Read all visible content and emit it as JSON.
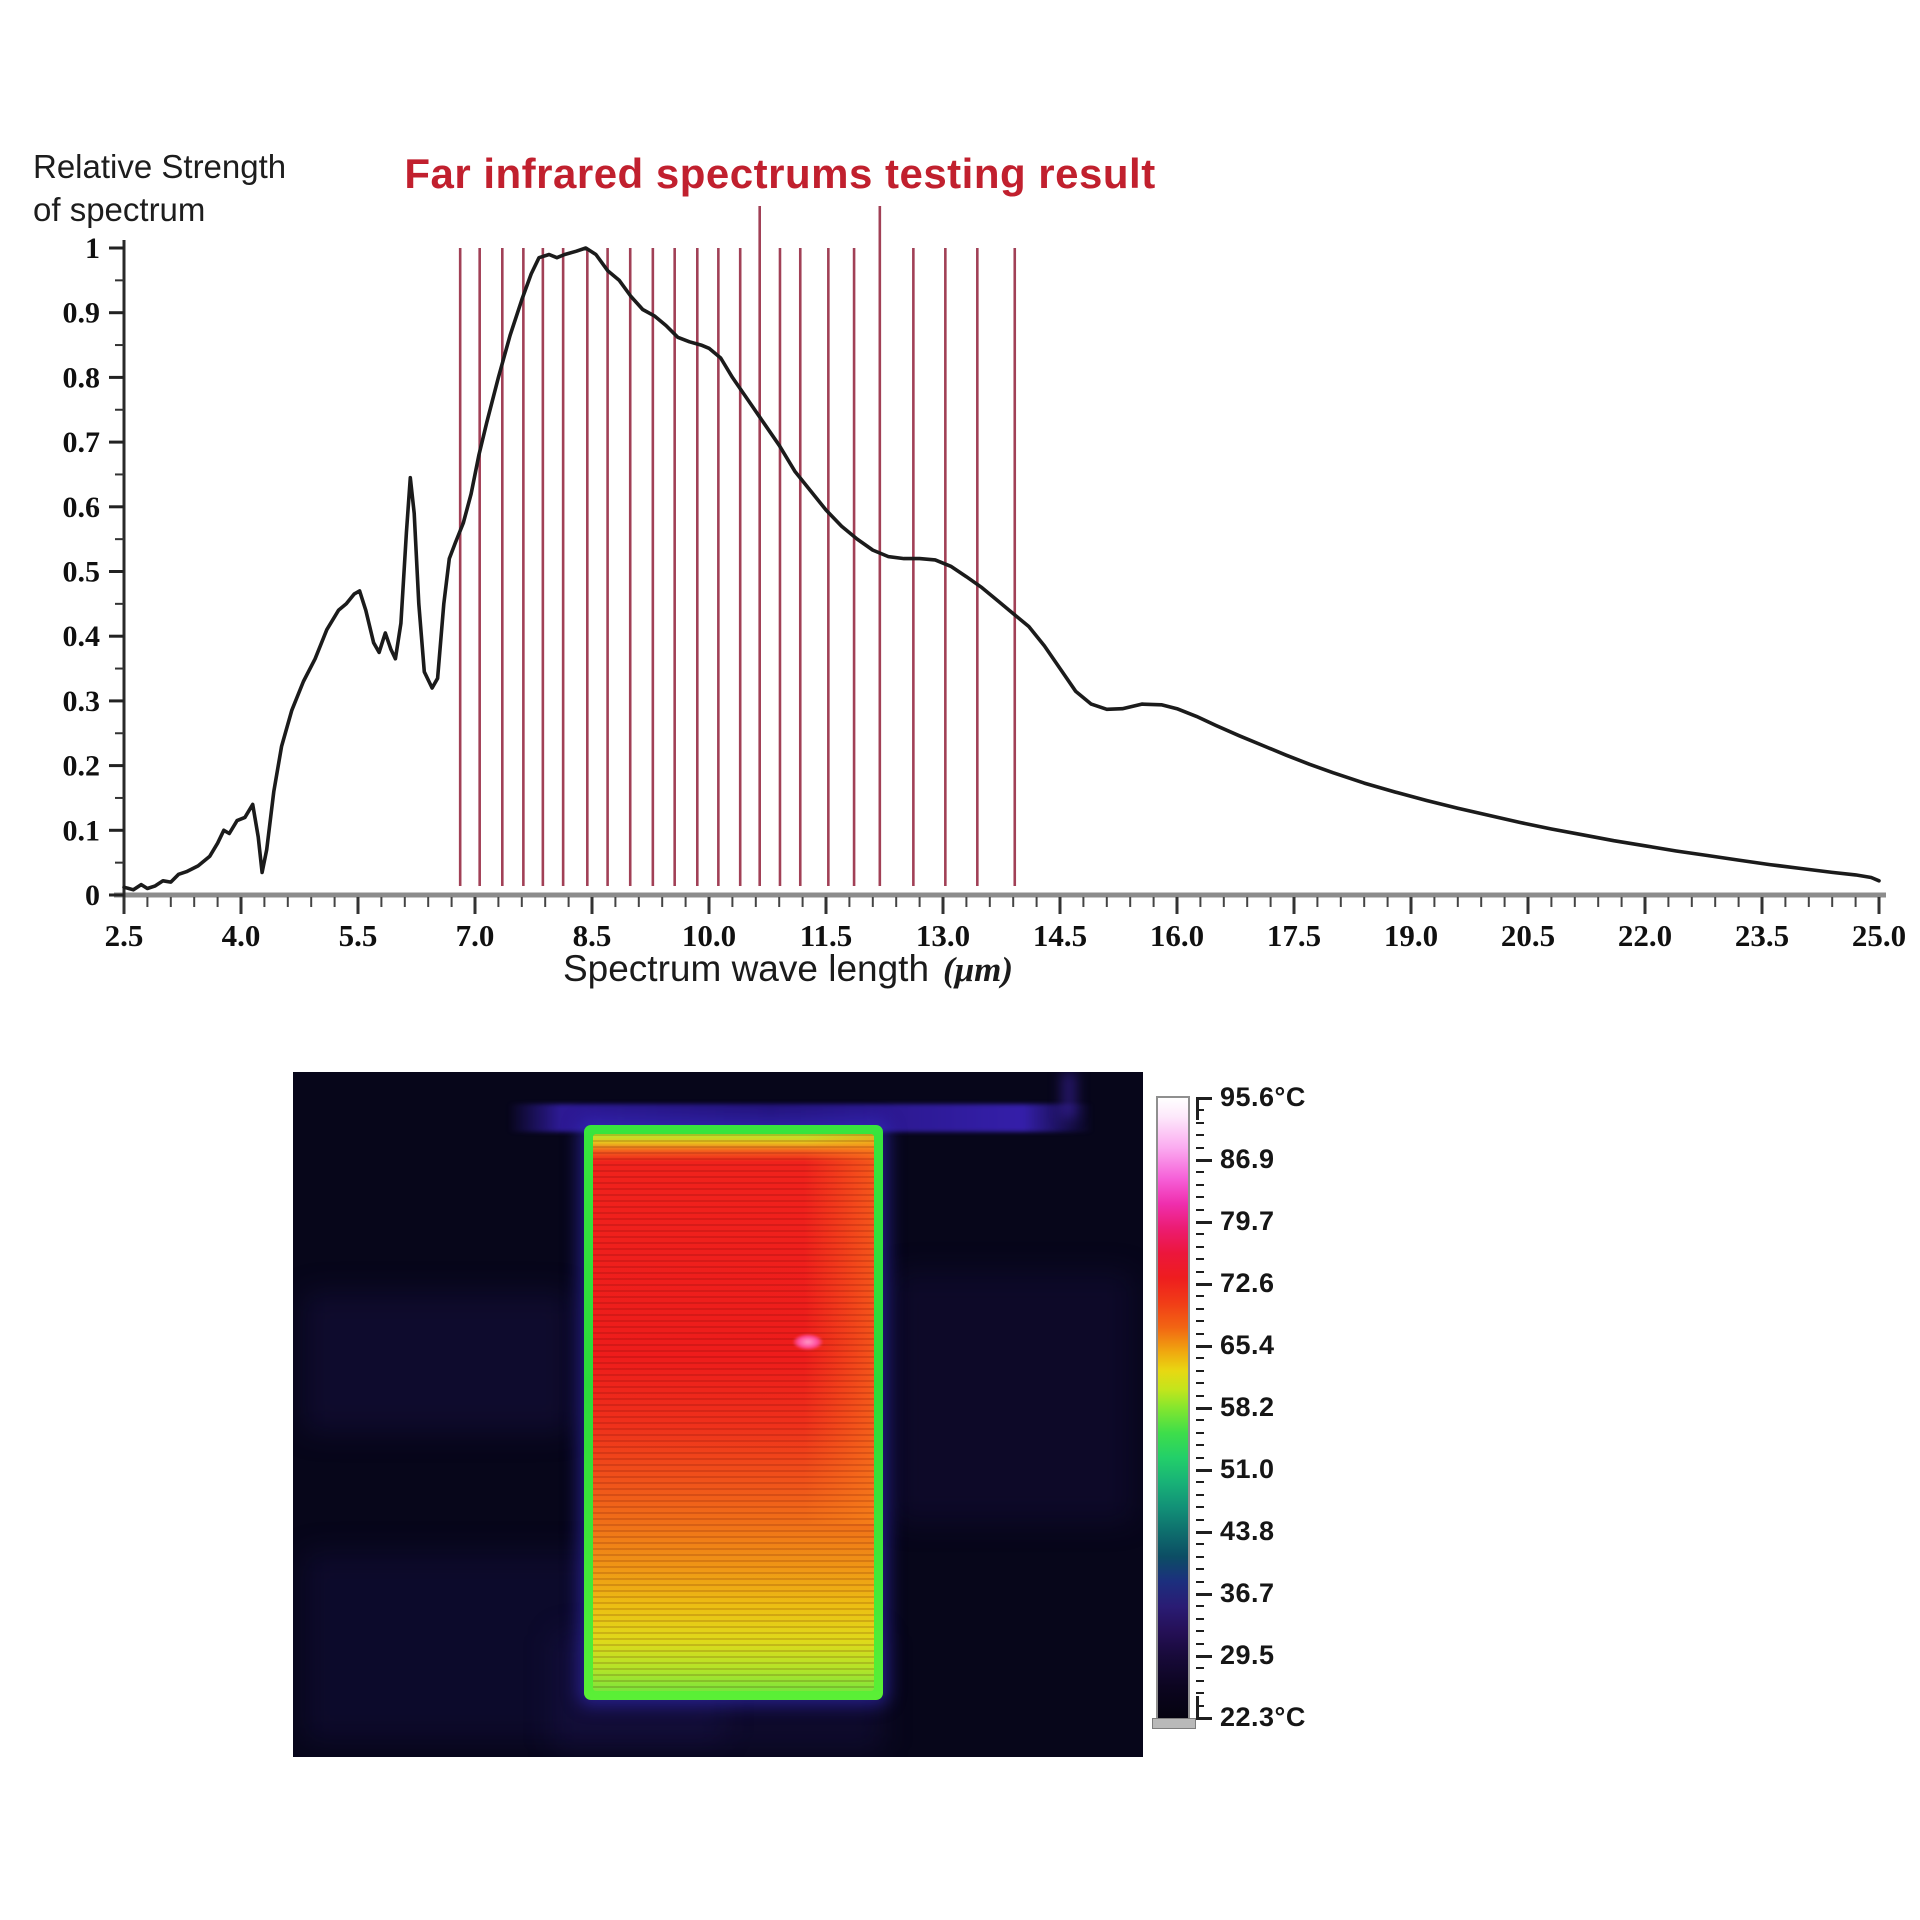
{
  "chart_data": {
    "type": "line",
    "title": "Far infrared spectrums testing result",
    "title_color": "#c1202e",
    "ylabel_lines": [
      "Relative Strength",
      "of spectrum"
    ],
    "xlabel": "Spectrum wave length",
    "xlabel_unit": "(μm)",
    "xlim": [
      2.5,
      25.0
    ],
    "ylim": [
      0,
      1
    ],
    "grid": false,
    "x_tick_labels": [
      "2.5",
      "4.0",
      "5.5",
      "7.0",
      "8.5",
      "10.0",
      "11.5",
      "13.0",
      "14.5",
      "16.0",
      "17.5",
      "19.0",
      "20.5",
      "22.0",
      "23.5",
      "25.0"
    ],
    "x_ticks": [
      2.5,
      4.0,
      5.5,
      7.0,
      8.5,
      10.0,
      11.5,
      13.0,
      14.5,
      16.0,
      17.5,
      19.0,
      20.5,
      22.0,
      23.5,
      25.0
    ],
    "x_minor_step": 0.3,
    "y_tick_labels": [
      "0",
      "0.1",
      "0.2",
      "0.3",
      "0.4",
      "0.5",
      "0.6",
      "0.7",
      "0.8",
      "0.9",
      "1"
    ],
    "y_ticks": [
      0,
      0.1,
      0.2,
      0.3,
      0.4,
      0.5,
      0.6,
      0.7,
      0.8,
      0.9,
      1.0
    ],
    "y_minor_step": 0.05,
    "curve_color": "#1b1b1b",
    "red_line_color": "#9a3048",
    "red_lines_um": [
      6.81,
      7.06,
      7.35,
      7.62,
      7.87,
      8.13,
      8.44,
      8.7,
      8.99,
      9.28,
      9.56,
      9.85,
      10.12,
      10.4,
      10.65,
      10.91,
      11.17,
      11.53,
      11.86,
      12.19,
      12.62,
      13.03,
      13.44,
      13.92
    ],
    "tall_red_lines_um": [
      10.65,
      12.19
    ],
    "series": [
      {
        "name": "far-infrared-spectrum",
        "points": [
          [
            2.5,
            0.012
          ],
          [
            2.62,
            0.008
          ],
          [
            2.72,
            0.016
          ],
          [
            2.8,
            0.01
          ],
          [
            2.9,
            0.014
          ],
          [
            3.0,
            0.022
          ],
          [
            3.1,
            0.02
          ],
          [
            3.2,
            0.032
          ],
          [
            3.3,
            0.036
          ],
          [
            3.45,
            0.045
          ],
          [
            3.6,
            0.06
          ],
          [
            3.7,
            0.08
          ],
          [
            3.78,
            0.1
          ],
          [
            3.85,
            0.095
          ],
          [
            3.95,
            0.115
          ],
          [
            4.05,
            0.12
          ],
          [
            4.15,
            0.14
          ],
          [
            4.22,
            0.09
          ],
          [
            4.27,
            0.035
          ],
          [
            4.33,
            0.07
          ],
          [
            4.42,
            0.16
          ],
          [
            4.52,
            0.23
          ],
          [
            4.65,
            0.285
          ],
          [
            4.8,
            0.33
          ],
          [
            4.95,
            0.365
          ],
          [
            5.1,
            0.41
          ],
          [
            5.25,
            0.44
          ],
          [
            5.35,
            0.45
          ],
          [
            5.45,
            0.465
          ],
          [
            5.52,
            0.47
          ],
          [
            5.6,
            0.44
          ],
          [
            5.7,
            0.39
          ],
          [
            5.77,
            0.375
          ],
          [
            5.85,
            0.405
          ],
          [
            5.92,
            0.38
          ],
          [
            5.98,
            0.365
          ],
          [
            6.05,
            0.42
          ],
          [
            6.12,
            0.56
          ],
          [
            6.17,
            0.645
          ],
          [
            6.22,
            0.59
          ],
          [
            6.28,
            0.45
          ],
          [
            6.35,
            0.345
          ],
          [
            6.45,
            0.32
          ],
          [
            6.52,
            0.335
          ],
          [
            6.6,
            0.45
          ],
          [
            6.67,
            0.52
          ],
          [
            6.75,
            0.545
          ],
          [
            6.85,
            0.575
          ],
          [
            6.95,
            0.62
          ],
          [
            7.05,
            0.68
          ],
          [
            7.15,
            0.73
          ],
          [
            7.3,
            0.8
          ],
          [
            7.45,
            0.865
          ],
          [
            7.6,
            0.92
          ],
          [
            7.72,
            0.96
          ],
          [
            7.82,
            0.985
          ],
          [
            7.95,
            0.99
          ],
          [
            8.05,
            0.985
          ],
          [
            8.15,
            0.99
          ],
          [
            8.3,
            0.995
          ],
          [
            8.42,
            1.0
          ],
          [
            8.55,
            0.99
          ],
          [
            8.7,
            0.965
          ],
          [
            8.85,
            0.95
          ],
          [
            9.0,
            0.925
          ],
          [
            9.15,
            0.905
          ],
          [
            9.3,
            0.895
          ],
          [
            9.45,
            0.88
          ],
          [
            9.6,
            0.862
          ],
          [
            9.75,
            0.855
          ],
          [
            9.9,
            0.85
          ],
          [
            10.0,
            0.845
          ],
          [
            10.15,
            0.83
          ],
          [
            10.3,
            0.8
          ],
          [
            10.5,
            0.765
          ],
          [
            10.7,
            0.73
          ],
          [
            10.9,
            0.695
          ],
          [
            11.1,
            0.655
          ],
          [
            11.3,
            0.625
          ],
          [
            11.5,
            0.595
          ],
          [
            11.7,
            0.57
          ],
          [
            11.9,
            0.55
          ],
          [
            12.1,
            0.533
          ],
          [
            12.3,
            0.523
          ],
          [
            12.5,
            0.52
          ],
          [
            12.7,
            0.52
          ],
          [
            12.9,
            0.518
          ],
          [
            13.1,
            0.508
          ],
          [
            13.3,
            0.492
          ],
          [
            13.5,
            0.475
          ],
          [
            13.7,
            0.455
          ],
          [
            13.9,
            0.435
          ],
          [
            14.1,
            0.415
          ],
          [
            14.3,
            0.385
          ],
          [
            14.5,
            0.35
          ],
          [
            14.7,
            0.315
          ],
          [
            14.9,
            0.295
          ],
          [
            15.1,
            0.287
          ],
          [
            15.3,
            0.288
          ],
          [
            15.55,
            0.295
          ],
          [
            15.8,
            0.294
          ],
          [
            16.0,
            0.288
          ],
          [
            16.25,
            0.276
          ],
          [
            16.5,
            0.262
          ],
          [
            16.8,
            0.246
          ],
          [
            17.1,
            0.231
          ],
          [
            17.4,
            0.216
          ],
          [
            17.7,
            0.202
          ],
          [
            18.0,
            0.189
          ],
          [
            18.4,
            0.173
          ],
          [
            18.8,
            0.159
          ],
          [
            19.2,
            0.146
          ],
          [
            19.6,
            0.134
          ],
          [
            20.0,
            0.123
          ],
          [
            20.4,
            0.112
          ],
          [
            20.8,
            0.102
          ],
          [
            21.2,
            0.093
          ],
          [
            21.6,
            0.084
          ],
          [
            22.0,
            0.076
          ],
          [
            22.4,
            0.068
          ],
          [
            22.8,
            0.061
          ],
          [
            23.2,
            0.054
          ],
          [
            23.6,
            0.047
          ],
          [
            24.0,
            0.041
          ],
          [
            24.4,
            0.035
          ],
          [
            24.7,
            0.031
          ],
          [
            24.9,
            0.027
          ],
          [
            25.0,
            0.022
          ]
        ]
      }
    ]
  },
  "thermal": {
    "scale_labels": [
      "95.6°C",
      "86.9",
      "79.7",
      "72.6",
      "65.4",
      "58.2",
      "51.0",
      "43.8",
      "36.7",
      "29.5",
      "22.3°C"
    ],
    "scale_max_c": 95.6,
    "scale_min_c": 22.3,
    "palette_stops": [
      [
        0,
        "#ffffff"
      ],
      [
        3,
        "#fde9fb"
      ],
      [
        8,
        "#fbabf0"
      ],
      [
        13,
        "#f660d8"
      ],
      [
        17,
        "#ef2fae"
      ],
      [
        21,
        "#ec1c72"
      ],
      [
        25,
        "#ec163c"
      ],
      [
        29,
        "#ee1d1f"
      ],
      [
        33,
        "#f13c17"
      ],
      [
        37,
        "#f26513"
      ],
      [
        41,
        "#f0a90f"
      ],
      [
        44,
        "#e8d812"
      ],
      [
        47,
        "#c3e51c"
      ],
      [
        50,
        "#84e62e"
      ],
      [
        54,
        "#3ede4a"
      ],
      [
        58,
        "#23cf69"
      ],
      [
        62,
        "#18b277"
      ],
      [
        66,
        "#129177"
      ],
      [
        70,
        "#0e6e6d"
      ],
      [
        74,
        "#0c4d64"
      ],
      [
        78,
        "#1c2f7e"
      ],
      [
        82,
        "#2a1c74"
      ],
      [
        86,
        "#251057"
      ],
      [
        90,
        "#180a3a"
      ],
      [
        95,
        "#0c0520"
      ],
      [
        100,
        "#050310"
      ]
    ],
    "panel_stops": [
      [
        0,
        "#b5ea2c"
      ],
      [
        1.5,
        "#e8c31e"
      ],
      [
        3,
        "#f3611d"
      ],
      [
        5,
        "#f0221c"
      ],
      [
        40,
        "#ee1c1b"
      ],
      [
        52,
        "#ef301b"
      ],
      [
        62,
        "#f0511a"
      ],
      [
        70,
        "#f07018"
      ],
      [
        78,
        "#ef9715"
      ],
      [
        85,
        "#ecc013"
      ],
      [
        91,
        "#dfd91a"
      ],
      [
        96,
        "#b4e428"
      ],
      [
        100,
        "#7ee43a"
      ]
    ],
    "background_color": "#07061a"
  }
}
